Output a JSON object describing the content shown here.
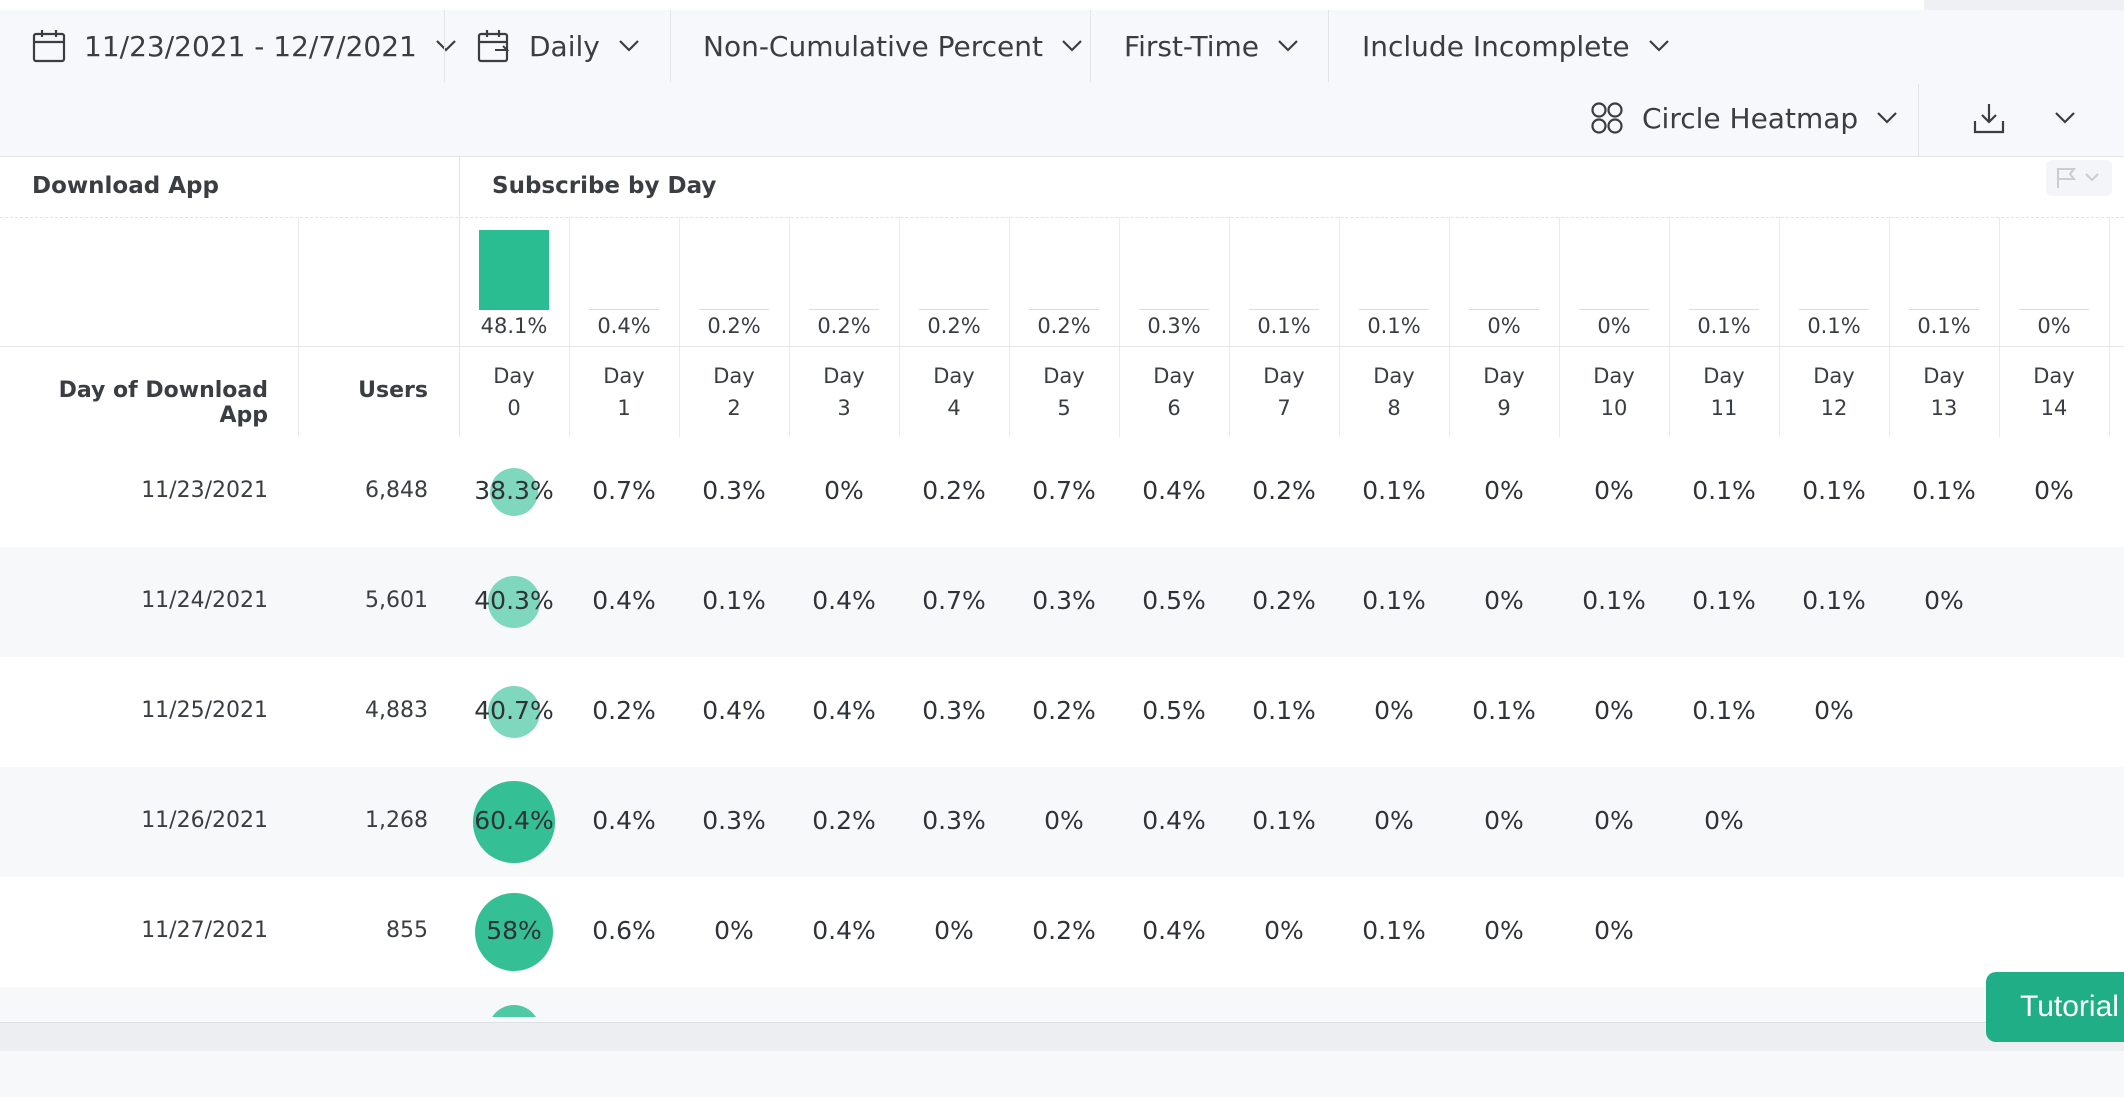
{
  "toolbar": {
    "date_range": "11/23/2021 - 12/7/2021",
    "interval": "Daily",
    "measure": "Non-Cumulative Percent",
    "occurrence": "First-Time",
    "incomplete": "Include Incomplete",
    "chart_type": "Circle Heatmap"
  },
  "headers": {
    "left_section": "Download App",
    "right_section": "Subscribe by Day",
    "date_col": "Day of Download App",
    "users_col": "Users"
  },
  "chart_data": {
    "type": "bar",
    "categories": [
      "Day 0",
      "Day 1",
      "Day 2",
      "Day 3",
      "Day 4",
      "Day 5",
      "Day 6",
      "Day 7",
      "Day 8",
      "Day 9",
      "Day 10",
      "Day 11",
      "Day 12",
      "Day 13",
      "Day 14"
    ],
    "values": [
      48.1,
      0.4,
      0.2,
      0.2,
      0.2,
      0.2,
      0.3,
      0.1,
      0.1,
      0,
      0,
      0.1,
      0.1,
      0.1,
      0
    ],
    "labels": [
      "48.1%",
      "0.4%",
      "0.2%",
      "0.2%",
      "0.2%",
      "0.2%",
      "0.3%",
      "0.1%",
      "0.1%",
      "0%",
      "0%",
      "0.1%",
      "0.1%",
      "0.1%",
      "0%"
    ]
  },
  "columns": [
    {
      "top": "Day",
      "bottom": "0"
    },
    {
      "top": "Day",
      "bottom": "1"
    },
    {
      "top": "Day",
      "bottom": "2"
    },
    {
      "top": "Day",
      "bottom": "3"
    },
    {
      "top": "Day",
      "bottom": "4"
    },
    {
      "top": "Day",
      "bottom": "5"
    },
    {
      "top": "Day",
      "bottom": "6"
    },
    {
      "top": "Day",
      "bottom": "7"
    },
    {
      "top": "Day",
      "bottom": "8"
    },
    {
      "top": "Day",
      "bottom": "9"
    },
    {
      "top": "Day",
      "bottom": "10"
    },
    {
      "top": "Day",
      "bottom": "11"
    },
    {
      "top": "Day",
      "bottom": "12"
    },
    {
      "top": "Day",
      "bottom": "13"
    },
    {
      "top": "Day",
      "bottom": "14"
    }
  ],
  "rows": [
    {
      "date": "11/23/2021",
      "users": "6,848",
      "day0": 38.3,
      "cells": [
        "38.3%",
        "0.7%",
        "0.3%",
        "0%",
        "0.2%",
        "0.7%",
        "0.4%",
        "0.2%",
        "0.1%",
        "0%",
        "0%",
        "0.1%",
        "0.1%",
        "0.1%",
        "0%"
      ]
    },
    {
      "date": "11/24/2021",
      "users": "5,601",
      "day0": 40.3,
      "cells": [
        "40.3%",
        "0.4%",
        "0.1%",
        "0.4%",
        "0.7%",
        "0.3%",
        "0.5%",
        "0.2%",
        "0.1%",
        "0%",
        "0.1%",
        "0.1%",
        "0.1%",
        "0%"
      ]
    },
    {
      "date": "11/25/2021",
      "users": "4,883",
      "day0": 40.7,
      "cells": [
        "40.7%",
        "0.2%",
        "0.4%",
        "0.4%",
        "0.3%",
        "0.2%",
        "0.5%",
        "0.1%",
        "0%",
        "0.1%",
        "0%",
        "0.1%",
        "0%"
      ]
    },
    {
      "date": "11/26/2021",
      "users": "1,268",
      "day0": 60.4,
      "cells": [
        "60.4%",
        "0.4%",
        "0.3%",
        "0.2%",
        "0.3%",
        "0%",
        "0.4%",
        "0.1%",
        "0%",
        "0%",
        "0%",
        "0%"
      ]
    },
    {
      "date": "11/27/2021",
      "users": "855",
      "day0": 58,
      "cells": [
        "58%",
        "0.6%",
        "0%",
        "0.4%",
        "0%",
        "0.2%",
        "0.4%",
        "0%",
        "0.1%",
        "0%",
        "0%"
      ]
    }
  ],
  "tutorial_label": "Tutorial",
  "colors": {
    "accent": "#2bbd92",
    "accent_dark": "#1fae85"
  }
}
